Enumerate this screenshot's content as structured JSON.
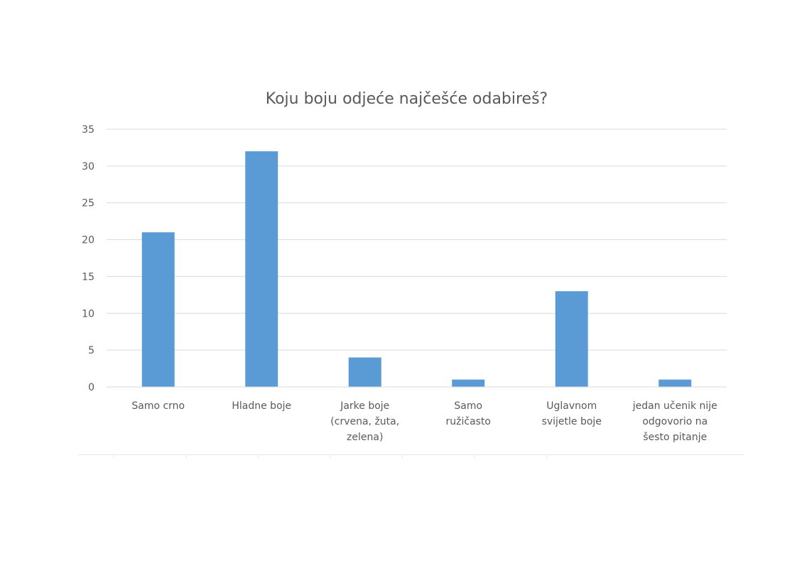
{
  "chart_data": {
    "type": "bar",
    "title": "Koju boju odjeće najčešće odabireš?",
    "categories": [
      [
        "Samo crno"
      ],
      [
        "Hladne boje"
      ],
      [
        "Jarke boje",
        "(crvena, žuta,",
        "zelena)"
      ],
      [
        "Samo",
        "ružičasto"
      ],
      [
        "Uglavnom",
        "svijetle boje"
      ],
      [
        "jedan učenik nije",
        "odgovorio na",
        "šesto pitanje"
      ]
    ],
    "values": [
      21,
      32,
      4,
      1,
      13,
      1
    ],
    "yticks": [
      "0",
      "5",
      "10",
      "15",
      "20",
      "25",
      "30",
      "35"
    ],
    "ylim": [
      0,
      35
    ],
    "grid": true,
    "legend": "none",
    "bar_color": "#5b9bd5",
    "grid_color": "#d9d9d9",
    "text_color": "#595959"
  }
}
